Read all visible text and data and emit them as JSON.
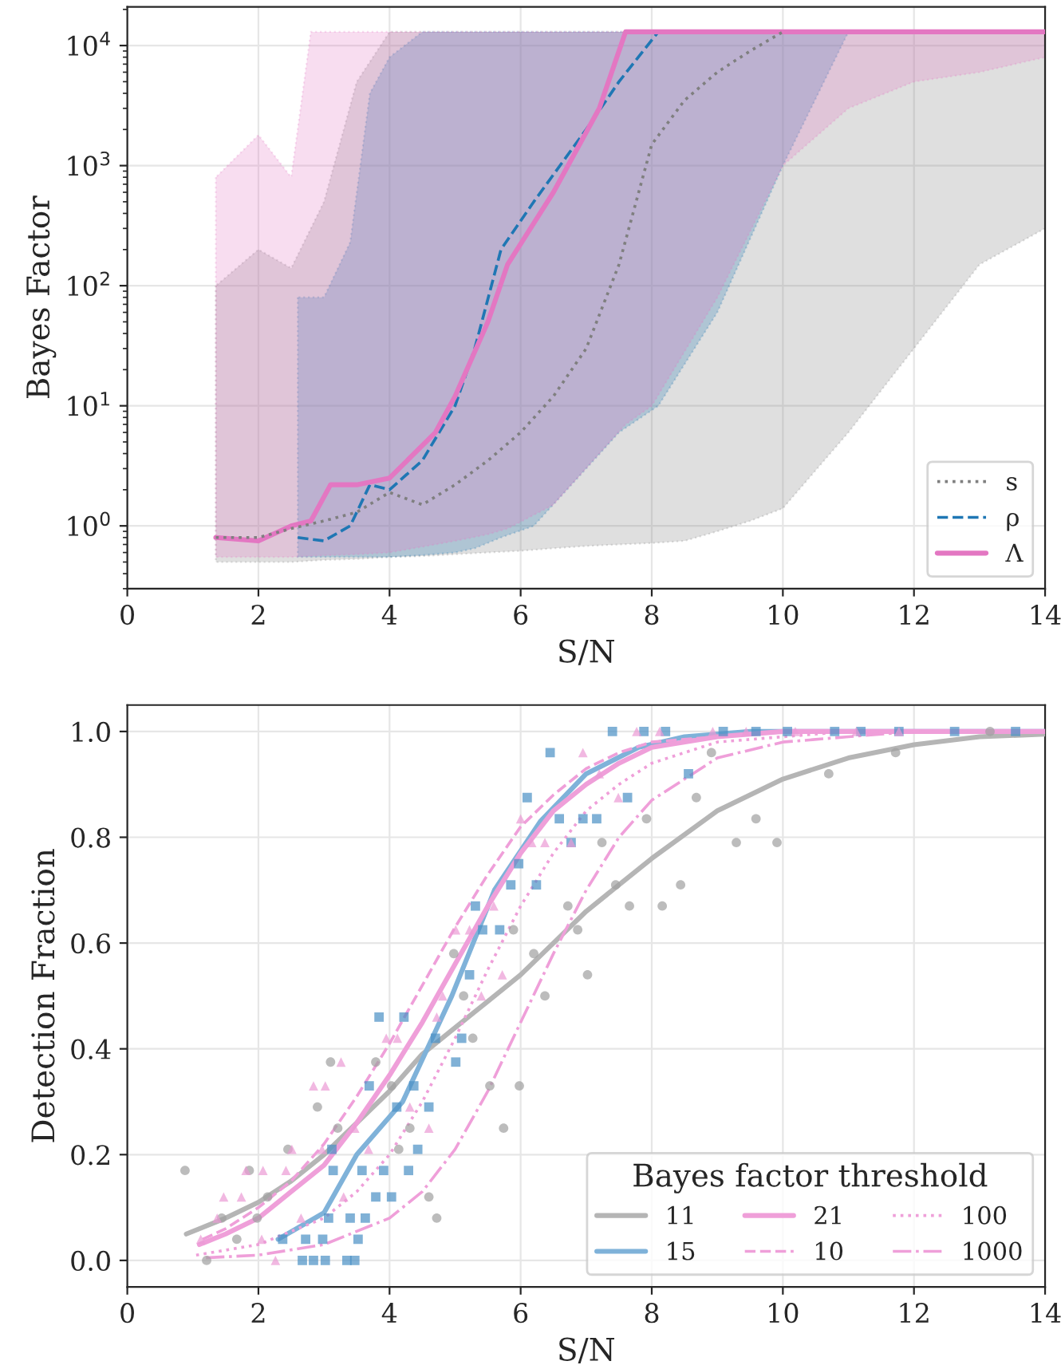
{
  "chart_data": [
    {
      "type": "line",
      "xlabel": "S/N",
      "ylabel": "Bayes Factor",
      "log": "y",
      "xlim": [
        0,
        14
      ],
      "xticks": [
        0,
        2,
        4,
        6,
        8,
        10,
        12,
        14
      ],
      "ylim": [
        0.3,
        21000
      ],
      "yticks": [
        {
          "value": 1,
          "label": "10$^{0}$"
        },
        {
          "value": 10,
          "label": "10$^{1}$"
        },
        {
          "value": 100,
          "label": "10$^{2}$"
        },
        {
          "value": 1000,
          "label": "10$^{3}$"
        },
        {
          "value": 10000,
          "label": "10$^{4}$"
        }
      ],
      "grid": true,
      "legend": "bottom right",
      "series": [
        {
          "name": "s",
          "color": "#7f7f7f",
          "line_style": "dotted",
          "x": [
            1.35,
            2,
            2.5,
            3,
            3.5,
            4,
            4.5,
            5,
            5.5,
            6,
            6.5,
            7,
            7.5,
            8,
            8.5,
            9,
            9.5,
            10,
            11,
            12,
            13,
            14
          ],
          "values": [
            0.8,
            0.8,
            0.95,
            1.1,
            1.3,
            1.9,
            1.5,
            2.2,
            3.5,
            6,
            12,
            30,
            150,
            1500,
            3500,
            6000,
            9000,
            13000,
            null,
            null,
            null,
            null
          ],
          "lower": [
            0.5,
            0.5,
            0.5,
            0.52,
            0.53,
            0.55,
            0.56,
            0.58,
            0.6,
            0.62,
            0.65,
            0.68,
            0.7,
            0.72,
            0.75,
            0.9,
            1.1,
            1.4,
            6,
            30,
            150,
            300
          ],
          "upper": [
            100,
            200,
            140,
            500,
            5000,
            13000,
            13000,
            13000,
            13000,
            13000,
            13000,
            13000,
            13000,
            13000,
            13000,
            13000,
            13000,
            13000,
            13000,
            13000,
            13000,
            13000
          ]
        },
        {
          "name": "ρ",
          "color": "#1f77b4",
          "line_style": "dashed",
          "x": [
            2.6,
            3,
            3.4,
            3.7,
            4,
            4.5,
            5,
            5.3,
            5.7,
            6.2,
            7,
            7.5,
            8.1,
            9,
            10,
            11,
            12,
            13,
            14
          ],
          "values": [
            0.8,
            0.75,
            1.0,
            2.2,
            2,
            3.5,
            10,
            30,
            200,
            500,
            2000,
            5000,
            13000,
            null,
            null,
            null,
            null,
            null,
            null
          ],
          "lower": [
            0.55,
            0.55,
            0.55,
            0.55,
            0.55,
            0.57,
            0.6,
            0.65,
            0.8,
            1,
            3,
            6,
            10,
            60,
            1000,
            13000,
            13000,
            13000,
            13000
          ],
          "upper": [
            80,
            80,
            230,
            4000,
            8000,
            13000,
            13000,
            13000,
            13000,
            13000,
            13000,
            13000,
            13000,
            13000,
            13000,
            13000,
            13000,
            13000,
            13000
          ]
        },
        {
          "name": "Λ",
          "color": "#e377c2",
          "line_style": "solid",
          "x": [
            1.35,
            2,
            2.5,
            2.8,
            3.1,
            3.5,
            4,
            4.7,
            5,
            5.5,
            5.8,
            6.5,
            7.2,
            7.6,
            8,
            9,
            10,
            11,
            12,
            13,
            14
          ],
          "values": [
            0.8,
            0.75,
            1.0,
            1.1,
            2.2,
            2.2,
            2.5,
            6,
            12,
            50,
            150,
            600,
            3000,
            13000,
            13000,
            13000,
            13000,
            13000,
            13000,
            13000,
            13000
          ],
          "lower": [
            0.55,
            0.55,
            0.55,
            0.56,
            0.57,
            0.58,
            0.6,
            0.7,
            0.75,
            0.85,
            0.95,
            1.5,
            4,
            7,
            10,
            80,
            1000,
            3000,
            5000,
            6000,
            8000
          ],
          "upper": [
            800,
            1800,
            800,
            13000,
            13000,
            13000,
            13000,
            13000,
            13000,
            13000,
            13000,
            13000,
            13000,
            13000,
            13000,
            13000,
            13000,
            13000,
            13000,
            13000,
            13000
          ]
        }
      ]
    },
    {
      "type": "line",
      "xlabel": "S/N",
      "ylabel": "Detection Fraction",
      "xlim": [
        0,
        14
      ],
      "xticks": [
        0,
        2,
        4,
        6,
        8,
        10,
        12,
        14
      ],
      "ylim": [
        -0.05,
        1.05
      ],
      "yticks": [
        {
          "value": 0,
          "label": "0.0"
        },
        {
          "value": 0.2,
          "label": "0.2"
        },
        {
          "value": 0.4,
          "label": "0.4"
        },
        {
          "value": 0.6,
          "label": "0.6"
        },
        {
          "value": 0.8,
          "label": "0.8"
        },
        {
          "value": 1,
          "label": "1.0"
        }
      ],
      "grid": true,
      "legend": "bottom right",
      "legend_title": "Bayes factor threshold",
      "series": [
        {
          "type": "scatter",
          "marker": "circle",
          "color": "#a0a0a0",
          "x": [
            0.88,
            1.21,
            1.44,
            1.67,
            1.86,
            1.98,
            2.14,
            2.45,
            2.9,
            3.1,
            3.21,
            3.79,
            4.03,
            4.14,
            4.31,
            4.6,
            4.72,
            4.98,
            5.13,
            5.27,
            5.53,
            5.74,
            5.89,
            5.98,
            6.2,
            6.37,
            6.72,
            6.87,
            7.02,
            7.24,
            7.45,
            7.66,
            7.92,
            8.16,
            8.44,
            8.68,
            8.91,
            9.29,
            9.59,
            9.91,
            10.7,
            11.72,
            13.16
          ],
          "values": [
            0.17,
            0,
            0.08,
            0.04,
            0.17,
            0.08,
            0.12,
            0.21,
            0.29,
            0.375,
            0.25,
            0.375,
            0.33,
            0.21,
            0.25,
            0.12,
            0.08,
            0.58,
            0.5,
            0.42,
            0.33,
            0.25,
            0.625,
            0.33,
            0.58,
            0.5,
            0.67,
            0.625,
            0.54,
            0.79,
            0.71,
            0.67,
            0.835,
            0.67,
            0.71,
            0.875,
            0.96,
            0.79,
            0.835,
            0.79,
            0.92,
            0.96,
            1.0
          ]
        },
        {
          "type": "scatter",
          "marker": "square",
          "color": "#4a90c4",
          "x": [
            2.37,
            2.67,
            2.72,
            2.84,
            2.98,
            3.02,
            3.07,
            3.12,
            3.14,
            3.35,
            3.4,
            3.47,
            3.52,
            3.58,
            3.63,
            3.69,
            3.79,
            3.84,
            3.91,
            4.03,
            4.11,
            4.22,
            4.29,
            4.37,
            4.43,
            4.6,
            4.7,
            5.01,
            5.1,
            5.22,
            5.31,
            5.42,
            5.68,
            5.85,
            5.97,
            6.1,
            6.24,
            6.45,
            6.59,
            6.77,
            6.95,
            7.16,
            7.4,
            7.63,
            7.88,
            8.21,
            8.56,
            9.09,
            9.59,
            10.07,
            10.79,
            11.19,
            11.77,
            12.62,
            13.55
          ],
          "values": [
            0.04,
            0,
            0.04,
            0,
            0.04,
            0,
            0.08,
            0.21,
            0.17,
            0,
            0.08,
            0,
            0.04,
            0.17,
            0.08,
            0.33,
            0.12,
            0.46,
            0.17,
            0.12,
            0.29,
            0.46,
            0.17,
            0.33,
            0.21,
            0.29,
            0.42,
            0.375,
            0.42,
            0.54,
            0.67,
            0.625,
            0.625,
            0.71,
            0.75,
            0.875,
            0.71,
            0.96,
            0.835,
            0.79,
            0.835,
            0.835,
            1.0,
            0.875,
            1.0,
            1.0,
            0.92,
            1.0,
            1.0,
            1.0,
            1.0,
            1.0,
            1.0,
            1.0,
            1.0
          ]
        },
        {
          "type": "scatter",
          "marker": "triangle",
          "color": "#eb9ad4",
          "x": [
            1.12,
            1.37,
            1.47,
            1.74,
            1.81,
            2.07,
            2.05,
            2.26,
            2.42,
            2.51,
            2.65,
            2.84,
            2.97,
            3.02,
            3.26,
            3.3,
            3.47,
            3.68,
            3.95,
            4.12,
            4.31,
            4.6,
            4.72,
            4.81,
            5.01,
            5.22,
            5.4,
            5.59,
            5.72,
            6.0,
            6.17,
            6.37,
            6.77,
            6.95,
            7.2,
            7.49,
            7.77,
            8.12,
            8.93,
            9.44,
            10.19,
            11.12,
            11.77
          ],
          "values": [
            0.04,
            0.08,
            0.12,
            0.12,
            0.17,
            0.17,
            0.04,
            0,
            0.17,
            0.21,
            0.08,
            0.33,
            0.21,
            0.33,
            0.375,
            0.12,
            0.25,
            0.21,
            0.42,
            0.42,
            0.29,
            0.25,
            0.46,
            0.5,
            0.625,
            0.625,
            0.5,
            0.67,
            0.54,
            0.835,
            0.79,
            0.79,
            0.79,
            0.96,
            0.92,
            0.875,
            1.0,
            1.0,
            1.0,
            1.0,
            1.0,
            1.0,
            1.0
          ]
        },
        {
          "type": "line",
          "name": "11",
          "color": "#b5b5b5",
          "line_style": "solid",
          "x": [
            0.9,
            1.5,
            2,
            2.5,
            3,
            3.5,
            4,
            4.5,
            5,
            5.5,
            6,
            6.5,
            7,
            7.5,
            8,
            9,
            10,
            11,
            12,
            13,
            14
          ],
          "values": [
            0.05,
            0.08,
            0.11,
            0.15,
            0.2,
            0.26,
            0.32,
            0.39,
            0.44,
            0.49,
            0.54,
            0.6,
            0.66,
            0.71,
            0.76,
            0.85,
            0.91,
            0.95,
            0.975,
            0.99,
            0.995
          ]
        },
        {
          "type": "line",
          "name": "15",
          "color": "#7fb2d9",
          "line_style": "solid",
          "x": [
            2.3,
            3,
            3.5,
            4.2,
            4.95,
            5.6,
            6.3,
            7,
            7.8,
            8.5,
            9.5,
            10,
            11,
            12,
            13,
            14
          ],
          "values": [
            0.04,
            0.09,
            0.2,
            0.3,
            0.5,
            0.7,
            0.83,
            0.92,
            0.97,
            0.99,
            1.0,
            1.0,
            1.0,
            1.0,
            1.0,
            1.0
          ]
        },
        {
          "type": "line",
          "name": "21",
          "color": "#ef9fd9",
          "line_style": "solid",
          "x": [
            1.1,
            1.5,
            2,
            2.5,
            3,
            3.5,
            4,
            4.5,
            5,
            5.5,
            6,
            6.5,
            7,
            7.5,
            8,
            9,
            10,
            11,
            12,
            13,
            14
          ],
          "values": [
            0.03,
            0.05,
            0.08,
            0.13,
            0.18,
            0.26,
            0.35,
            0.45,
            0.56,
            0.67,
            0.77,
            0.85,
            0.9,
            0.94,
            0.97,
            0.99,
            1.0,
            1.0,
            1.0,
            1.0,
            1.0
          ]
        },
        {
          "type": "line",
          "name": "10",
          "color": "#ef9fd9",
          "line_style": "dashed",
          "x": [
            1.15,
            1.5,
            2,
            2.5,
            3,
            3.5,
            4,
            4.5,
            5,
            5.5,
            6,
            6.5,
            7,
            7.5,
            8,
            9,
            10,
            11,
            12,
            13,
            14
          ],
          "values": [
            0.04,
            0.06,
            0.1,
            0.15,
            0.22,
            0.31,
            0.41,
            0.52,
            0.63,
            0.73,
            0.82,
            0.88,
            0.93,
            0.96,
            0.98,
            0.99,
            1.0,
            1.0,
            1.0,
            1.0,
            1.0
          ]
        },
        {
          "type": "line",
          "name": "100",
          "color": "#ef9fd9",
          "line_style": "dotted",
          "x": [
            1.05,
            2,
            3,
            3.5,
            4,
            4.5,
            5,
            5.5,
            6,
            6.5,
            7,
            7.5,
            8,
            9,
            10,
            11,
            12,
            13,
            14
          ],
          "values": [
            0.01,
            0.03,
            0.08,
            0.13,
            0.2,
            0.3,
            0.42,
            0.55,
            0.67,
            0.77,
            0.85,
            0.9,
            0.94,
            0.98,
            0.99,
            1.0,
            1.0,
            1.0,
            1.0
          ]
        },
        {
          "type": "line",
          "name": "1000",
          "color": "#ef9fd9",
          "line_style": "dashdot",
          "x": [
            1.2,
            2,
            3,
            4,
            4.5,
            5,
            5.5,
            6,
            6.5,
            7,
            7.5,
            8,
            9,
            10,
            11,
            12,
            13,
            14
          ],
          "values": [
            0.005,
            0.01,
            0.03,
            0.08,
            0.13,
            0.21,
            0.32,
            0.45,
            0.58,
            0.7,
            0.8,
            0.87,
            0.95,
            0.98,
            0.99,
            1.0,
            1.0,
            1.0
          ]
        }
      ]
    }
  ]
}
